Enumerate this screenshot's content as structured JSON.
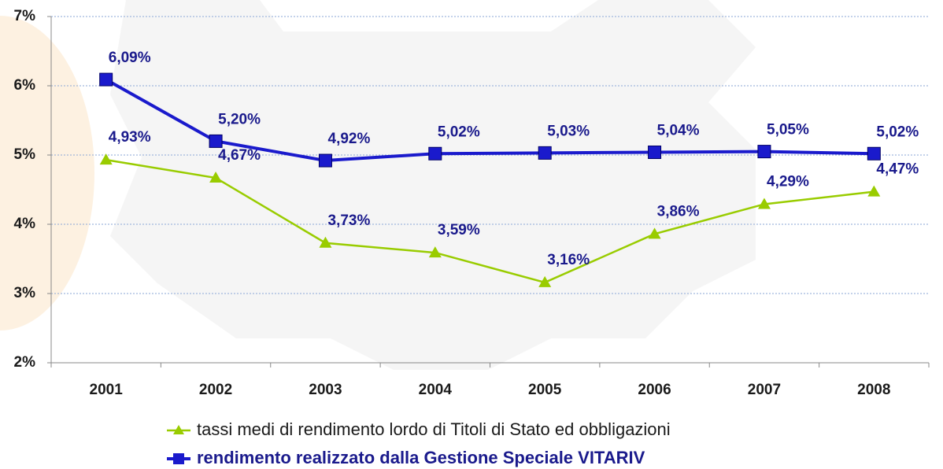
{
  "chart_data": {
    "type": "line",
    "categories": [
      "2001",
      "2002",
      "2003",
      "2004",
      "2005",
      "2006",
      "2007",
      "2008"
    ],
    "series": [
      {
        "name": "tassi medi di rendimento lordo di Titoli di Stato ed obbligazioni",
        "color": "#99cc00",
        "values": [
          4.93,
          4.67,
          3.73,
          3.59,
          3.16,
          3.86,
          4.29,
          4.47
        ],
        "value_labels": [
          "4,93%",
          "4,67%",
          "3,73%",
          "3,59%",
          "3,16%",
          "3,86%",
          "4,29%",
          "4,47%"
        ]
      },
      {
        "name": "rendimento realizzato dalla Gestione Speciale VITARIV",
        "color": "#1a1acc",
        "values": [
          6.09,
          5.2,
          4.92,
          5.02,
          5.03,
          5.04,
          5.05,
          5.02
        ],
        "value_labels": [
          "6,09%",
          "5,20%",
          "4,92%",
          "5,02%",
          "5,03%",
          "5,04%",
          "5,05%",
          "5,02%"
        ]
      }
    ],
    "ylim": [
      2,
      7
    ],
    "yticks": [
      {
        "value": 2,
        "label": "2%"
      },
      {
        "value": 3,
        "label": "3%"
      },
      {
        "value": 4,
        "label": "4%"
      },
      {
        "value": 5,
        "label": "5%"
      },
      {
        "value": 6,
        "label": "6%"
      },
      {
        "value": 7,
        "label": "7%"
      }
    ],
    "grid": true
  }
}
